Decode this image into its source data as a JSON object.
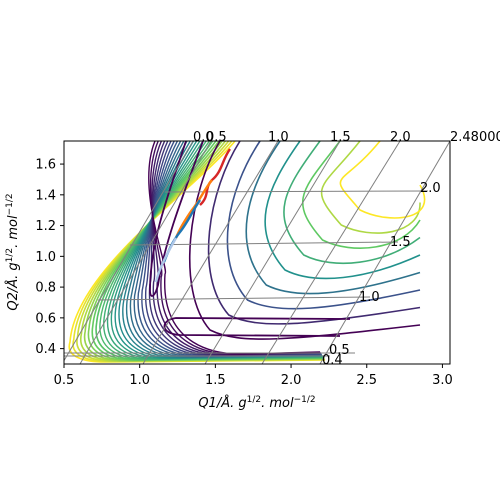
{
  "chart_data": {
    "type": "contour",
    "xlabel": "Q1/Å. g1/2. mol−1/2",
    "ylabel": "Q2/Å. g1/2. mol−1/2",
    "xlim": [
      0.5,
      3.05
    ],
    "ylim": [
      0.3,
      1.75
    ],
    "x_ticks": [
      "0.5",
      "1.0",
      "1.5",
      "2.0",
      "2.5",
      "3.0"
    ],
    "y_ticks": [
      "0.4",
      "0.6",
      "0.8",
      "1.0",
      "1.2",
      "1.4",
      "1.6"
    ],
    "grid": "skewed",
    "skew_axis_1_labels": [
      "0.4",
      "0.5",
      "1.0",
      "1.5",
      "2.0"
    ],
    "skew_axis_2_labels": [
      "0.0",
      "0.5",
      "1.0",
      "1.5",
      "2.0",
      "2.48000"
    ],
    "colormap": [
      "#440154",
      "#3b528b",
      "#21918c",
      "#5ec962",
      "#fde725"
    ],
    "trajectory_colors": [
      "#d62728",
      "#ff7f0e",
      "#1f77b4",
      "#aec7e8"
    ]
  }
}
